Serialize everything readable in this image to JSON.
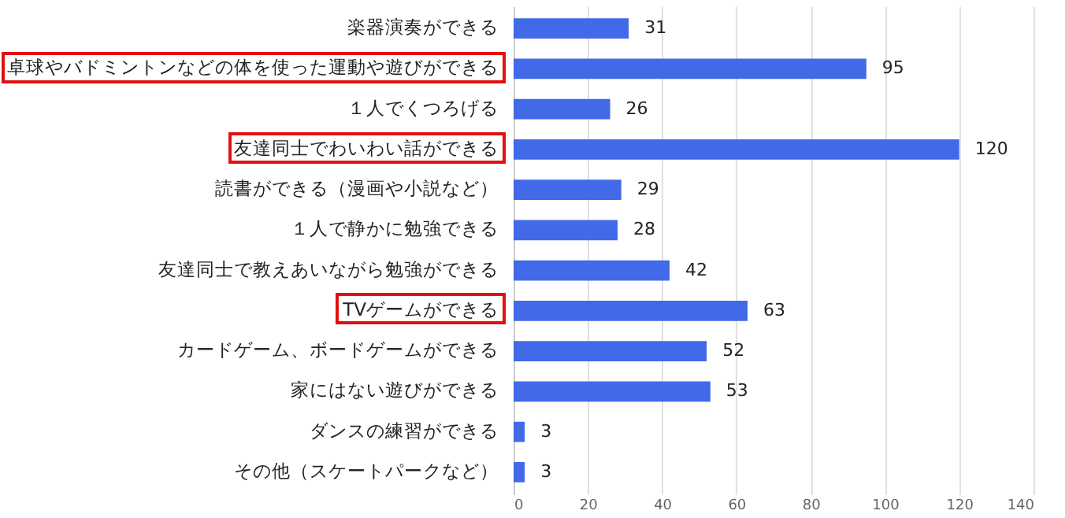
{
  "chart_data": {
    "type": "bar",
    "orientation": "horizontal",
    "categories": [
      "楽器演奏ができる",
      "卓球やバドミントンなどの体を使った運動や遊びができる",
      "１人でくつろげる",
      "友達同士でわいわい話ができる",
      "読書ができる（漫画や小説など）",
      "１人で静かに勉強できる",
      "友達同士で教えあいながら勉強ができる",
      "TVゲームができる",
      "カードゲーム、ボードゲームができる",
      "家にはない遊びができる",
      "ダンスの練習ができる",
      "その他（スケートパークなど）"
    ],
    "values": [
      31,
      95,
      26,
      120,
      29,
      28,
      42,
      63,
      52,
      53,
      3,
      3
    ],
    "color": "#4169e8",
    "xlim": [
      0,
      140
    ],
    "xticks": [
      0,
      20,
      40,
      60,
      80,
      100,
      120,
      140
    ],
    "grid": "x",
    "data_labels": true
  }
}
